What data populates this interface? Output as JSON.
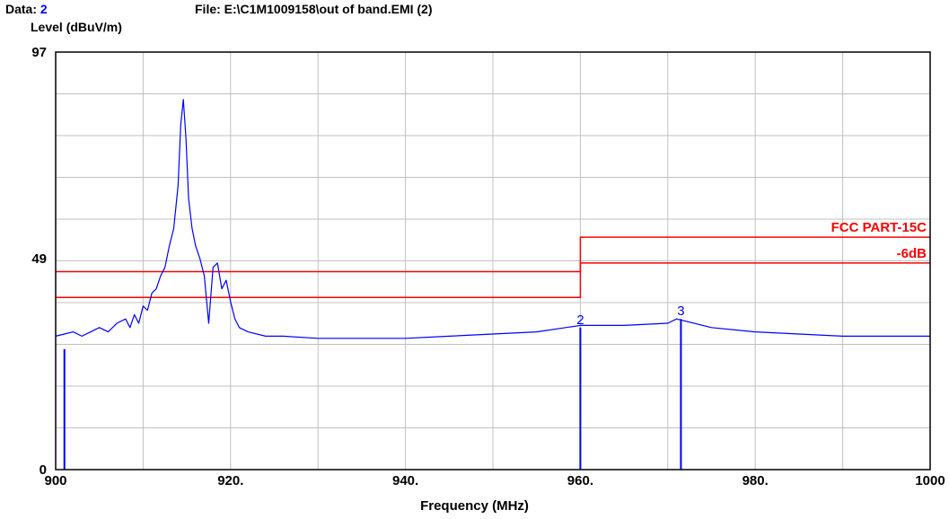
{
  "header": {
    "data_label": "Data:",
    "data_value": "2",
    "file": "File: E:\\C1M1009158\\out of band.EMI  (2)"
  },
  "chart_data": {
    "type": "line",
    "title": "",
    "xlabel": "Frequency (MHz)",
    "ylabel": "Level (dBuV/m)",
    "xlim": [
      900,
      1000
    ],
    "ylim": [
      0,
      97
    ],
    "x_tick_labels": [
      "900",
      "920.",
      "940.",
      "960.",
      "980.",
      "1000"
    ],
    "x_tick_values": [
      900,
      920,
      940,
      960,
      980,
      1000
    ],
    "y_tick_labels": [
      "97",
      "49",
      "0"
    ],
    "y_tick_values": [
      97,
      49,
      0
    ],
    "grid": true,
    "colors": {
      "trace": "#0000ff",
      "limit": "#ff0000",
      "grid": "#c0c0c0"
    },
    "series": [
      {
        "values_x": [
          900,
          901,
          902,
          903,
          904,
          905,
          906,
          907,
          908,
          908.5,
          909,
          909.5,
          910,
          910.5,
          911,
          911.5,
          912,
          912.5,
          913,
          913.5,
          914,
          914.3,
          914.6,
          914.9,
          915.2,
          915.6,
          916,
          916.5,
          917,
          917.5,
          918,
          918.5,
          919,
          919.5,
          920,
          920.5,
          921,
          922,
          924,
          926,
          930,
          935,
          940,
          945,
          950,
          955,
          960,
          965,
          970,
          971,
          975,
          980,
          985,
          990,
          995,
          1000
        ],
        "values_y": [
          31,
          31.5,
          32,
          31,
          32,
          33,
          32,
          34,
          35,
          33,
          36,
          34,
          38,
          37,
          41,
          42,
          45,
          47,
          52,
          56,
          66,
          80,
          86,
          77,
          63,
          56,
          52,
          49,
          45,
          34,
          47,
          48,
          42,
          44,
          39,
          35,
          33,
          32,
          31,
          31,
          30.5,
          30.5,
          30.5,
          31,
          31.5,
          32,
          33.5,
          33.5,
          34,
          35,
          33,
          32,
          31.5,
          31,
          31,
          31
        ]
      }
    ],
    "limit_lines": [
      {
        "label": "FCC PART-15C",
        "segments": [
          [
            900,
            960,
            46
          ],
          [
            960,
            1000,
            54
          ]
        ]
      },
      {
        "label": "-6dB",
        "segments": [
          [
            900,
            960,
            40
          ],
          [
            960,
            1000,
            48
          ]
        ]
      }
    ],
    "markers": [
      {
        "label": "",
        "x": 901,
        "y": 28
      },
      {
        "label": "2",
        "x": 960,
        "y": 33
      },
      {
        "label": "3",
        "x": 971.5,
        "y": 35
      }
    ]
  }
}
